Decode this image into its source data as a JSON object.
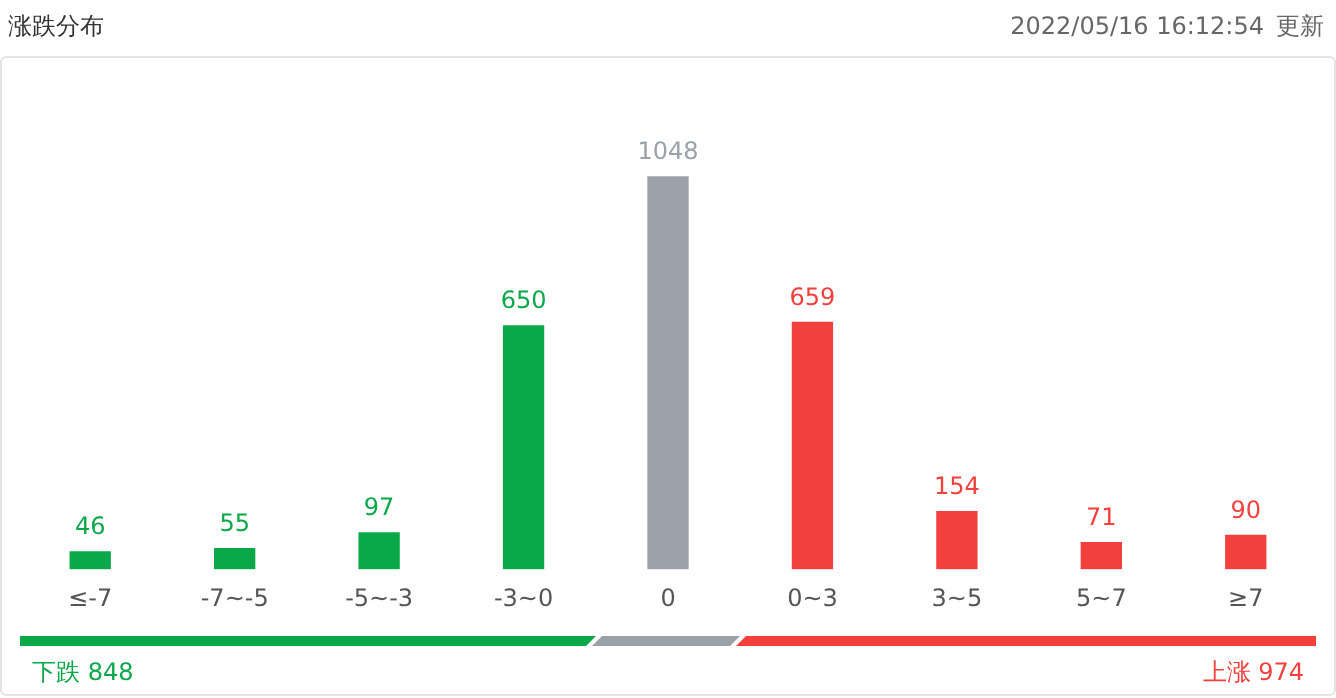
{
  "chart_data": {
    "type": "bar",
    "title": "涨跌分布",
    "categories": [
      "≤-7",
      "-7~-5",
      "-5~-3",
      "-3~0",
      "0",
      "0~3",
      "3~5",
      "5~7",
      "≥7"
    ],
    "values": [
      46,
      55,
      97,
      650,
      1048,
      659,
      154,
      71,
      90
    ],
    "colors": [
      "#0ba84a",
      "#0ba84a",
      "#0ba84a",
      "#0ba84a",
      "#9aa1a9",
      "#f2403c",
      "#f2403c",
      "#f2403c",
      "#f2403c"
    ],
    "tick_labels": "x",
    "data_labels": true,
    "grid": false,
    "legend": false,
    "annotations": [
      "2022/05/16 16:12:54",
      "更新",
      "下跌 848",
      "上涨 974"
    ]
  }
}
